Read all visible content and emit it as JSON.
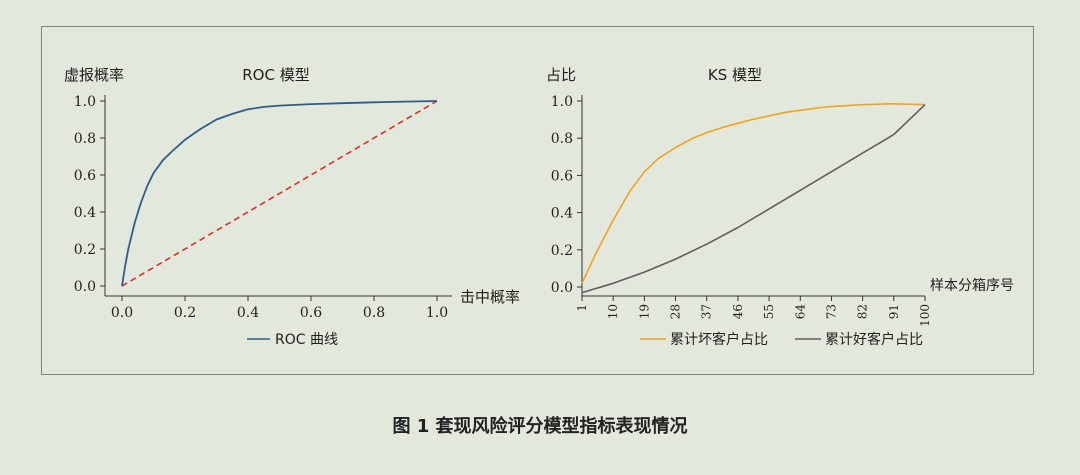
{
  "caption": "图 1  套现风险评分模型指标表现情况",
  "colors": {
    "background": "#e3e8dc",
    "frame": "#7f8480",
    "roc_curve": "#2f5d8a",
    "diagonal": "#d6312b",
    "bad_cum": "#f0a31f",
    "good_cum": "#5f5f5f",
    "axis": "#333333"
  },
  "chart_data": [
    {
      "type": "line",
      "title": "ROC 模型",
      "ylabel": "虚报概率",
      "xlabel": "击中概率",
      "xlim": [
        0,
        1
      ],
      "ylim": [
        0,
        1
      ],
      "xticks": [
        "0.0",
        "0.2",
        "0.4",
        "0.6",
        "0.8",
        "1.0"
      ],
      "yticks": [
        "0.0",
        "0.2",
        "0.4",
        "0.6",
        "0.8",
        "1.0"
      ],
      "legend_position": "bottom",
      "series": [
        {
          "name": "ROC 曲线",
          "style": "solid",
          "x": [
            0,
            0.01,
            0.02,
            0.04,
            0.06,
            0.08,
            0.1,
            0.13,
            0.16,
            0.2,
            0.25,
            0.3,
            0.35,
            0.4,
            0.45,
            0.5,
            0.6,
            0.7,
            0.8,
            0.9,
            1.0
          ],
          "y": [
            0,
            0.11,
            0.2,
            0.34,
            0.45,
            0.54,
            0.61,
            0.68,
            0.73,
            0.79,
            0.85,
            0.9,
            0.93,
            0.955,
            0.968,
            0.975,
            0.983,
            0.988,
            0.993,
            0.997,
            1.0
          ]
        },
        {
          "style": "dashed",
          "x": [
            0,
            1
          ],
          "y": [
            0,
            1
          ]
        }
      ]
    },
    {
      "type": "line",
      "title": "KS 模型",
      "ylabel": "占比",
      "xlabel": "样本分箱序号",
      "xlim": [
        1,
        100
      ],
      "ylim": [
        0,
        1
      ],
      "xticks": [
        "1",
        "10",
        "19",
        "28",
        "37",
        "46",
        "55",
        "64",
        "73",
        "82",
        "91",
        "100"
      ],
      "yticks": [
        "0.0",
        "0.2",
        "0.4",
        "0.6",
        "0.8",
        "1.0"
      ],
      "legend_position": "bottom",
      "series": [
        {
          "name": "累计坏客户占比",
          "x": [
            1,
            5,
            10,
            15,
            19,
            23,
            28,
            33,
            37,
            42,
            46,
            50,
            55,
            60,
            64,
            70,
            73,
            80,
            82,
            90,
            91,
            100
          ],
          "y": [
            0.02,
            0.18,
            0.36,
            0.52,
            0.62,
            0.69,
            0.75,
            0.8,
            0.83,
            0.86,
            0.88,
            0.9,
            0.92,
            0.94,
            0.95,
            0.965,
            0.97,
            0.978,
            0.98,
            0.985,
            0.985,
            0.98
          ]
        },
        {
          "name": "累计好客户占比",
          "x": [
            1,
            10,
            19,
            28,
            37,
            46,
            55,
            64,
            73,
            82,
            91,
            100
          ],
          "y": [
            -0.03,
            0.02,
            0.08,
            0.15,
            0.23,
            0.32,
            0.42,
            0.52,
            0.62,
            0.72,
            0.82,
            0.98
          ]
        }
      ]
    }
  ]
}
